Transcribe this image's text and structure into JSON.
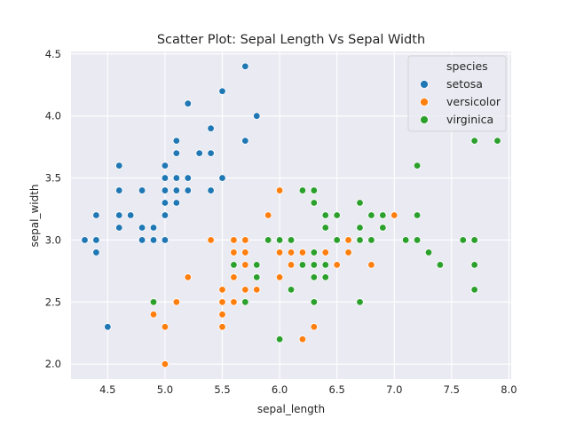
{
  "chart_data": {
    "type": "scatter",
    "title": "Scatter Plot: Sepal Length Vs Sepal Width",
    "xlabel": "sepal_length",
    "ylabel": "sepal_width",
    "xlim": [
      4.18,
      8.02
    ],
    "ylim": [
      1.88,
      4.52
    ],
    "xticks": [
      4.5,
      5.0,
      5.5,
      6.0,
      6.5,
      7.0,
      7.5,
      8.0
    ],
    "yticks": [
      2.0,
      2.5,
      3.0,
      3.5,
      4.0,
      4.5
    ],
    "grid": true,
    "background_color": "#eaeaf2",
    "legend": {
      "title": "species",
      "placement": "top-right"
    },
    "series": [
      {
        "name": "setosa",
        "color": "#1f77b4",
        "points": [
          [
            4.3,
            3.0
          ],
          [
            4.4,
            3.2
          ],
          [
            4.4,
            3.0
          ],
          [
            4.4,
            2.9
          ],
          [
            4.5,
            2.3
          ],
          [
            4.6,
            3.6
          ],
          [
            4.6,
            3.4
          ],
          [
            4.6,
            3.2
          ],
          [
            4.6,
            3.1
          ],
          [
            4.7,
            3.2
          ],
          [
            4.8,
            3.4
          ],
          [
            4.8,
            3.1
          ],
          [
            4.8,
            3.0
          ],
          [
            4.9,
            3.1
          ],
          [
            4.9,
            3.0
          ],
          [
            5.0,
            3.6
          ],
          [
            5.0,
            3.5
          ],
          [
            5.0,
            3.4
          ],
          [
            5.0,
            3.3
          ],
          [
            5.0,
            3.2
          ],
          [
            5.0,
            3.0
          ],
          [
            5.1,
            3.8
          ],
          [
            5.1,
            3.7
          ],
          [
            5.1,
            3.5
          ],
          [
            5.1,
            3.4
          ],
          [
            5.1,
            3.3
          ],
          [
            5.2,
            4.1
          ],
          [
            5.2,
            3.5
          ],
          [
            5.2,
            3.4
          ],
          [
            5.3,
            3.7
          ],
          [
            5.4,
            3.9
          ],
          [
            5.4,
            3.7
          ],
          [
            5.4,
            3.4
          ],
          [
            5.5,
            4.2
          ],
          [
            5.5,
            3.5
          ],
          [
            5.7,
            4.4
          ],
          [
            5.7,
            3.8
          ],
          [
            5.8,
            4.0
          ]
        ]
      },
      {
        "name": "versicolor",
        "color": "#ff7f0e",
        "points": [
          [
            4.9,
            2.4
          ],
          [
            5.0,
            2.3
          ],
          [
            5.0,
            2.0
          ],
          [
            5.1,
            2.5
          ],
          [
            5.2,
            2.7
          ],
          [
            5.4,
            3.0
          ],
          [
            5.5,
            2.6
          ],
          [
            5.5,
            2.5
          ],
          [
            5.5,
            2.4
          ],
          [
            5.5,
            2.3
          ],
          [
            5.6,
            3.0
          ],
          [
            5.6,
            2.9
          ],
          [
            5.6,
            2.7
          ],
          [
            5.6,
            2.5
          ],
          [
            5.7,
            3.0
          ],
          [
            5.7,
            2.9
          ],
          [
            5.7,
            2.8
          ],
          [
            5.7,
            2.6
          ],
          [
            5.8,
            2.7
          ],
          [
            5.8,
            2.6
          ],
          [
            5.9,
            3.2
          ],
          [
            5.9,
            3.0
          ],
          [
            6.0,
            3.4
          ],
          [
            6.0,
            2.9
          ],
          [
            6.0,
            2.7
          ],
          [
            6.1,
            3.0
          ],
          [
            6.1,
            2.9
          ],
          [
            6.1,
            2.8
          ],
          [
            6.2,
            2.9
          ],
          [
            6.2,
            2.2
          ],
          [
            6.3,
            3.3
          ],
          [
            6.3,
            2.5
          ],
          [
            6.3,
            2.3
          ],
          [
            6.4,
            2.9
          ],
          [
            6.5,
            2.8
          ],
          [
            6.6,
            3.0
          ],
          [
            6.6,
            2.9
          ],
          [
            6.7,
            3.1
          ],
          [
            6.7,
            3.0
          ],
          [
            6.8,
            2.8
          ],
          [
            6.9,
            3.1
          ],
          [
            7.0,
            3.2
          ]
        ]
      },
      {
        "name": "virginica",
        "color": "#2ca02c",
        "points": [
          [
            4.9,
            2.5
          ],
          [
            5.6,
            2.8
          ],
          [
            5.7,
            2.5
          ],
          [
            5.8,
            2.8
          ],
          [
            5.8,
            2.7
          ],
          [
            5.9,
            3.0
          ],
          [
            6.0,
            3.0
          ],
          [
            6.0,
            2.2
          ],
          [
            6.1,
            3.0
          ],
          [
            6.1,
            2.6
          ],
          [
            6.2,
            3.4
          ],
          [
            6.2,
            2.8
          ],
          [
            6.3,
            3.4
          ],
          [
            6.3,
            3.3
          ],
          [
            6.3,
            2.9
          ],
          [
            6.3,
            2.8
          ],
          [
            6.3,
            2.7
          ],
          [
            6.3,
            2.5
          ],
          [
            6.4,
            3.2
          ],
          [
            6.4,
            3.1
          ],
          [
            6.4,
            2.8
          ],
          [
            6.4,
            2.7
          ],
          [
            6.5,
            3.2
          ],
          [
            6.5,
            3.0
          ],
          [
            6.7,
            3.3
          ],
          [
            6.7,
            3.1
          ],
          [
            6.7,
            3.0
          ],
          [
            6.7,
            2.5
          ],
          [
            6.8,
            3.2
          ],
          [
            6.8,
            3.0
          ],
          [
            6.9,
            3.2
          ],
          [
            6.9,
            3.1
          ],
          [
            7.1,
            3.0
          ],
          [
            7.2,
            3.6
          ],
          [
            7.2,
            3.2
          ],
          [
            7.2,
            3.0
          ],
          [
            7.3,
            2.9
          ],
          [
            7.4,
            2.8
          ],
          [
            7.6,
            3.0
          ],
          [
            7.7,
            3.8
          ],
          [
            7.7,
            3.0
          ],
          [
            7.7,
            2.8
          ],
          [
            7.7,
            2.6
          ],
          [
            7.9,
            3.8
          ]
        ]
      }
    ]
  }
}
